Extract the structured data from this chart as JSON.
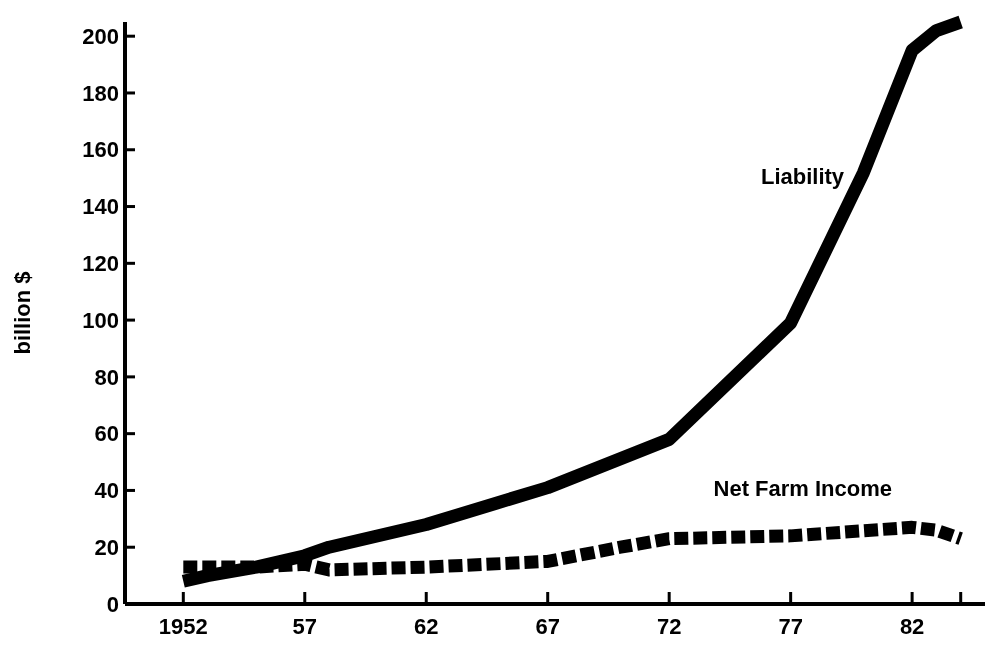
{
  "chart_data": {
    "type": "line",
    "ylabel": "billion $",
    "xlim": [
      1949.6,
      1985
    ],
    "ylim": [
      0,
      205
    ],
    "xticks": [
      1952,
      {
        "value": 1957,
        "label": "57"
      },
      {
        "value": 1962,
        "label": "62"
      },
      {
        "value": 1967,
        "label": "67"
      },
      {
        "value": 1972,
        "label": "72"
      },
      {
        "value": 1977,
        "label": "77"
      },
      {
        "value": 1982,
        "label": "82"
      },
      {
        "value": 1984,
        "label": null
      }
    ],
    "yticks": [
      0,
      20,
      40,
      60,
      80,
      100,
      120,
      140,
      160,
      180,
      200
    ],
    "grid": false,
    "series": [
      {
        "name": "Liability",
        "color": "#000000",
        "line_style": "solid",
        "x": [
          1952,
          1953,
          1955,
          1957,
          1958,
          1962,
          1967,
          1972,
          1977,
          1980,
          1982,
          1983,
          1984
        ],
        "values": [
          8,
          10,
          13,
          17,
          20,
          28,
          41,
          58,
          99,
          152,
          195,
          202,
          205
        ]
      },
      {
        "name": "Net Farm Income",
        "color": "#000000",
        "line_style": "dashed",
        "x": [
          1952,
          1955,
          1957,
          1958,
          1962,
          1967,
          1970,
          1972,
          1977,
          1982,
          1983,
          1984
        ],
        "values": [
          13,
          13,
          14,
          12,
          13,
          15,
          20,
          23,
          24,
          27,
          26,
          23
        ]
      }
    ]
  }
}
